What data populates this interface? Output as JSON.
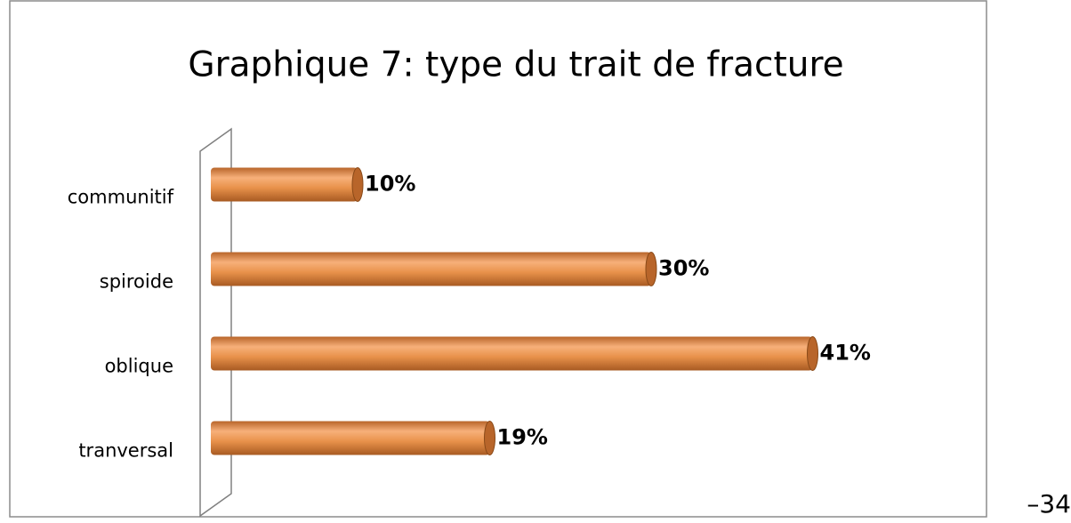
{
  "chart_data": {
    "type": "bar",
    "orientation": "horizontal",
    "title": "Graphique 7: type du trait de fracture",
    "categories": [
      "communitif",
      "spiroide",
      "oblique",
      "tranversal"
    ],
    "values": [
      10,
      30,
      41,
      19
    ],
    "value_labels": [
      "10%",
      "30%",
      "41%",
      "19%"
    ],
    "color": "#e8914a",
    "xlim": [
      0,
      50
    ]
  },
  "page_number": "–34"
}
